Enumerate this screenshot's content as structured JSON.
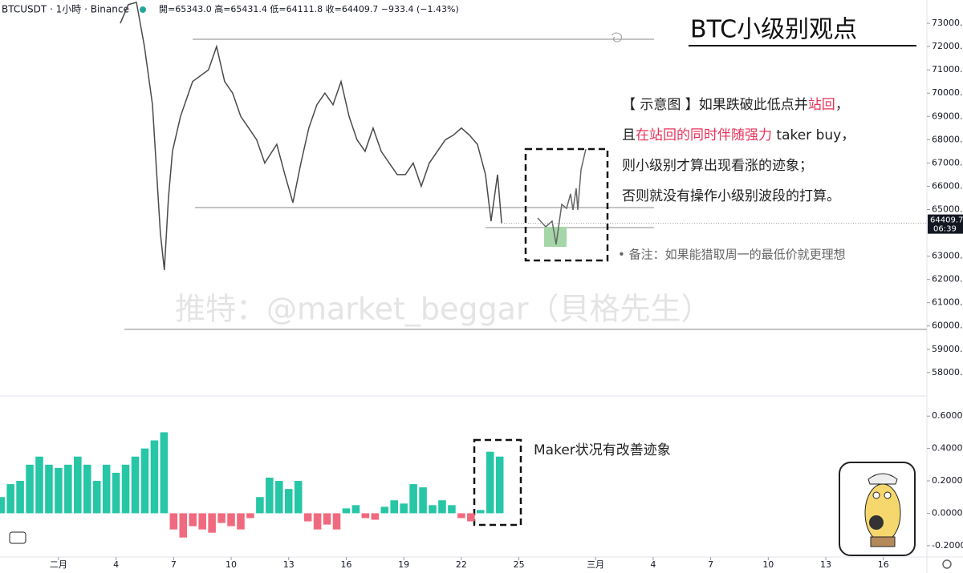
{
  "header": {
    "symbol": "BTCUSDT · 1小時 · Binance",
    "ohlc": "開=65343.0  高=65431.4  低=64111.8  收=64409.7  −933.4 (−1.43%)"
  },
  "title": "BTC小级别观点",
  "notes": [
    [
      {
        "text": "【 示意图 】如果跌破此低点并"
      },
      {
        "text": "站回",
        "color": "#e8335a"
      },
      {
        "text": "，"
      }
    ],
    [
      {
        "text": "且"
      },
      {
        "text": "在站回的同时伴随强力",
        "color": "#e8335a"
      },
      {
        "text": " taker buy，"
      }
    ],
    [
      {
        "text": "则小级别才算出现看涨的迹象；"
      }
    ],
    [
      {
        "text": "否则就没有操作小级别波段的打算。"
      }
    ]
  ],
  "remark": "• 备注：如果能猎取周一的最低价就更理想",
  "maker_note": "Maker状况有改善迹象",
  "watermark": "推特：@market_beggar（貝格先生）",
  "chart_data": [
    {
      "type": "line",
      "color": "#4a4a4a",
      "last_time": "06:39",
      "x": [
        3.22,
        3.64,
        4.06,
        4.48,
        4.9,
        5.31,
        5.52,
        5.73,
        5.94,
        6.36,
        6.99,
        7.82,
        8.24,
        8.66,
        9.08,
        9.5,
        9.92,
        10.33,
        10.75,
        11.38,
        11.8,
        12.22,
        12.64,
        13.05,
        13.47,
        13.89,
        14.31,
        14.73,
        15.15,
        15.56,
        15.98,
        16.4,
        16.82,
        17.24,
        17.66,
        18.08,
        18.49,
        18.91,
        19.33,
        19.75,
        20.17,
        20.59,
        21,
        21.42,
        21.84,
        22.26,
        22.55,
        22.89,
        23.1
      ],
      "values": [
        73000,
        73800,
        73900,
        72000,
        69500,
        64000,
        62400,
        65500,
        67500,
        69000,
        70500,
        71000,
        72000,
        70500,
        70000,
        69000,
        68500,
        68000,
        67000,
        67800,
        66500,
        65300,
        67000,
        68500,
        69500,
        70000,
        69500,
        70500,
        69000,
        68000,
        67500,
        68500,
        67500,
        67000,
        66500,
        66500,
        67000,
        66000,
        67000,
        67500,
        68000,
        68200,
        68500,
        68200,
        67800,
        66500,
        64500,
        66500,
        64409.7
      ],
      "xlim": [
        -3.05,
        45.27
      ],
      "ylim": [
        57100,
        74000
      ],
      "yticks": [
        {
          "value": 73000,
          "label": "73000.0"
        },
        {
          "value": 72000,
          "label": "72000.0"
        },
        {
          "value": 71000,
          "label": "71000.0"
        },
        {
          "value": 70000,
          "label": "70000.0"
        },
        {
          "value": 69000,
          "label": "69000.0"
        },
        {
          "value": 68000,
          "label": "68000.0"
        },
        {
          "value": 67000,
          "label": "67000.0"
        },
        {
          "value": 66000,
          "label": "66000.0"
        },
        {
          "value": 65000,
          "label": "65000.0"
        },
        {
          "value": 63000,
          "label": "63000.0"
        },
        {
          "value": 62000,
          "label": "62000.0"
        },
        {
          "value": 61000,
          "label": "61000.0"
        },
        {
          "value": 60000,
          "label": "60000.0"
        },
        {
          "value": 59000,
          "label": "59000.0"
        },
        {
          "value": 58000,
          "label": "58000.0"
        }
      ],
      "xticks": [
        {
          "value": 0,
          "label": "二月"
        },
        {
          "value": 3,
          "label": "4"
        },
        {
          "value": 6,
          "label": "7"
        },
        {
          "value": 9,
          "label": "10"
        },
        {
          "value": 12,
          "label": "13"
        },
        {
          "value": 15,
          "label": "16"
        },
        {
          "value": 18,
          "label": "19"
        },
        {
          "value": 21,
          "label": "22"
        },
        {
          "value": 24,
          "label": "25"
        },
        {
          "value": 28,
          "label": "三月"
        },
        {
          "value": 31,
          "label": "4"
        },
        {
          "value": 34,
          "label": "7"
        },
        {
          "value": 37,
          "label": "10"
        },
        {
          "value": 40,
          "label": "13"
        },
        {
          "value": 43,
          "label": "16"
        }
      ]
    },
    {
      "type": "bar",
      "pos_color": "#26c6a6",
      "neg_color": "#f06a7f",
      "x": [
        -3,
        -2.5,
        -2,
        -1.5,
        -1,
        -0.5,
        0,
        0.5,
        1,
        1.5,
        2,
        2.5,
        3,
        3.5,
        4,
        4.5,
        5,
        5.5,
        6,
        6.5,
        7,
        7.5,
        8,
        8.5,
        9,
        9.5,
        10,
        10.5,
        11,
        11.5,
        12,
        12.5,
        13,
        13.5,
        14,
        14.5,
        15,
        15.5,
        16,
        16.5,
        17,
        17.5,
        18,
        18.5,
        19,
        19.5,
        20,
        20.5,
        21,
        21.5,
        22,
        22.5,
        23
      ],
      "values": [
        0.1,
        0.18,
        0.2,
        0.3,
        0.35,
        0.3,
        0.28,
        0.3,
        0.35,
        0.3,
        0.2,
        0.3,
        0.25,
        0.3,
        0.35,
        0.4,
        0.45,
        0.5,
        -0.1,
        -0.15,
        -0.08,
        -0.1,
        -0.12,
        -0.06,
        -0.08,
        -0.1,
        -0.03,
        0.1,
        0.22,
        0.2,
        0.15,
        0.2,
        -0.05,
        -0.1,
        -0.07,
        -0.1,
        0.03,
        0.05,
        -0.03,
        -0.04,
        0.04,
        0.08,
        0.06,
        0.18,
        0.16,
        0.05,
        0.08,
        0.05,
        -0.03,
        -0.05,
        0.02,
        0.38,
        0.35
      ],
      "xlim": [
        -3.05,
        45.27
      ],
      "ylim": [
        -0.27,
        0.71
      ],
      "yticks": [
        {
          "value": 0.6,
          "label": "0.6000"
        },
        {
          "value": 0.4,
          "label": "0.4000"
        },
        {
          "value": 0.2,
          "label": "0.2000"
        },
        {
          "value": 0,
          "label": "0.0000"
        },
        {
          "value": -0.2,
          "label": "-0.2000"
        }
      ]
    }
  ]
}
